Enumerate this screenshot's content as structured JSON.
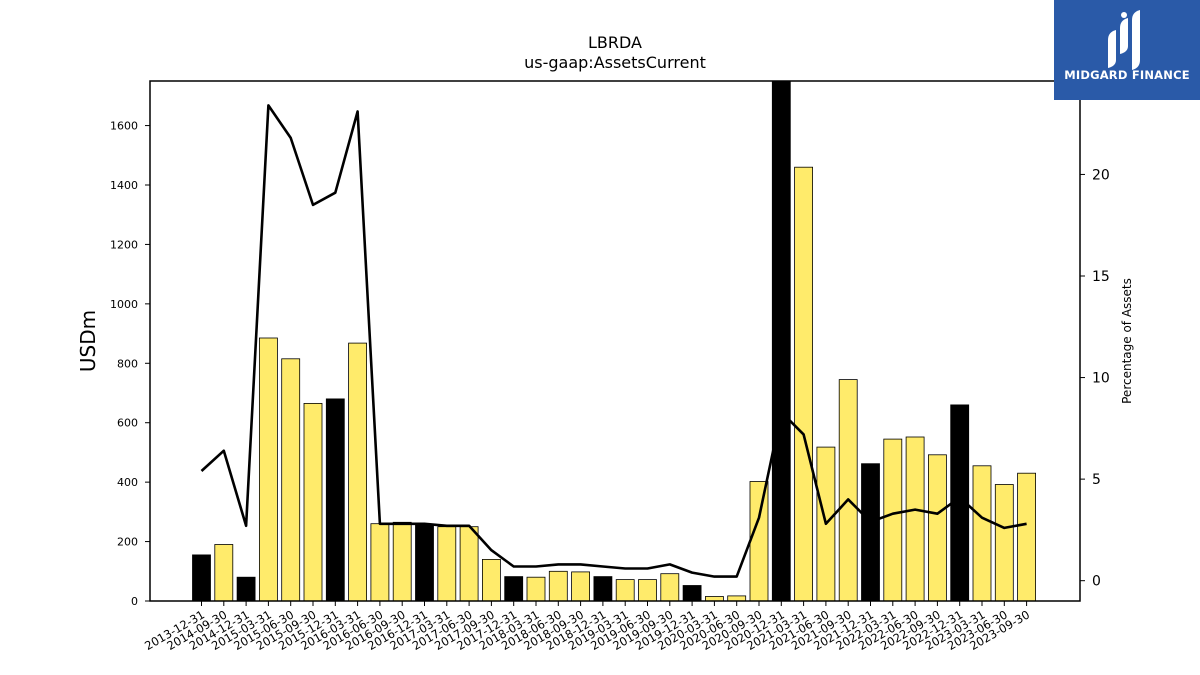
{
  "brand": {
    "name": "MIDGARD FINANCE",
    "logo_icon": "midgard-m-logo-icon",
    "color": "#2a5aa8"
  },
  "chart_data": {
    "type": "bar",
    "title": "LBRDA",
    "subtitle": "us-gaap:AssetsCurrent",
    "ylabel": "USDm",
    "y2label": "Percentage of Assets",
    "ylim": [
      0,
      1750
    ],
    "y2lim": [
      -1,
      24.6
    ],
    "yticks": [
      0,
      200,
      400,
      600,
      800,
      1000,
      1200,
      1400,
      1600
    ],
    "y2ticks": [
      0,
      5,
      10,
      15,
      20
    ],
    "grid": false,
    "bar_colors": {
      "annual": "#000000",
      "quarterly": "#ffeb6b"
    },
    "line_color": "#000000",
    "categories": [
      "2013-12-31",
      "2014-09-30",
      "2014-12-31",
      "2015-03-31",
      "2015-06-30",
      "2015-09-30",
      "2015-12-31",
      "2016-03-31",
      "2016-06-30",
      "2016-09-30",
      "2016-12-31",
      "2017-03-31",
      "2017-06-30",
      "2017-09-30",
      "2017-12-31",
      "2018-03-31",
      "2018-06-30",
      "2018-09-30",
      "2018-12-31",
      "2019-03-31",
      "2019-06-30",
      "2019-09-30",
      "2019-12-31",
      "2020-03-31",
      "2020-06-30",
      "2020-09-30",
      "2020-12-31",
      "2021-03-31",
      "2021-06-30",
      "2021-09-30",
      "2021-12-31",
      "2022-03-31",
      "2022-06-30",
      "2022-09-30",
      "2022-12-31",
      "2023-03-31",
      "2023-06-30",
      "2023-09-30"
    ],
    "series": [
      {
        "kind": "bar",
        "values": [
          155,
          190,
          80,
          885,
          815,
          665,
          680,
          868,
          260,
          265,
          258,
          250,
          250,
          140,
          82,
          80,
          100,
          98,
          82,
          72,
          72,
          92,
          52,
          15,
          17,
          402,
          1750,
          1460,
          518,
          745,
          462,
          545,
          552,
          492,
          660,
          455,
          392,
          430
        ],
        "annual": [
          true,
          false,
          true,
          false,
          false,
          false,
          true,
          false,
          false,
          false,
          true,
          false,
          false,
          false,
          true,
          false,
          false,
          false,
          true,
          false,
          false,
          false,
          true,
          false,
          false,
          false,
          true,
          false,
          false,
          false,
          true,
          false,
          false,
          false,
          true,
          false,
          false,
          false
        ]
      },
      {
        "kind": "line",
        "axis": "right",
        "values": [
          5.4,
          6.4,
          2.7,
          23.4,
          21.8,
          18.5,
          19.1,
          23.1,
          2.8,
          2.8,
          2.8,
          2.7,
          2.7,
          1.5,
          0.7,
          0.7,
          0.8,
          0.8,
          0.7,
          0.6,
          0.6,
          0.8,
          0.4,
          0.2,
          0.2,
          3.1,
          8.3,
          7.2,
          2.8,
          4.0,
          2.9,
          3.3,
          3.5,
          3.3,
          4.1,
          3.1,
          2.6,
          2.8
        ]
      }
    ]
  }
}
